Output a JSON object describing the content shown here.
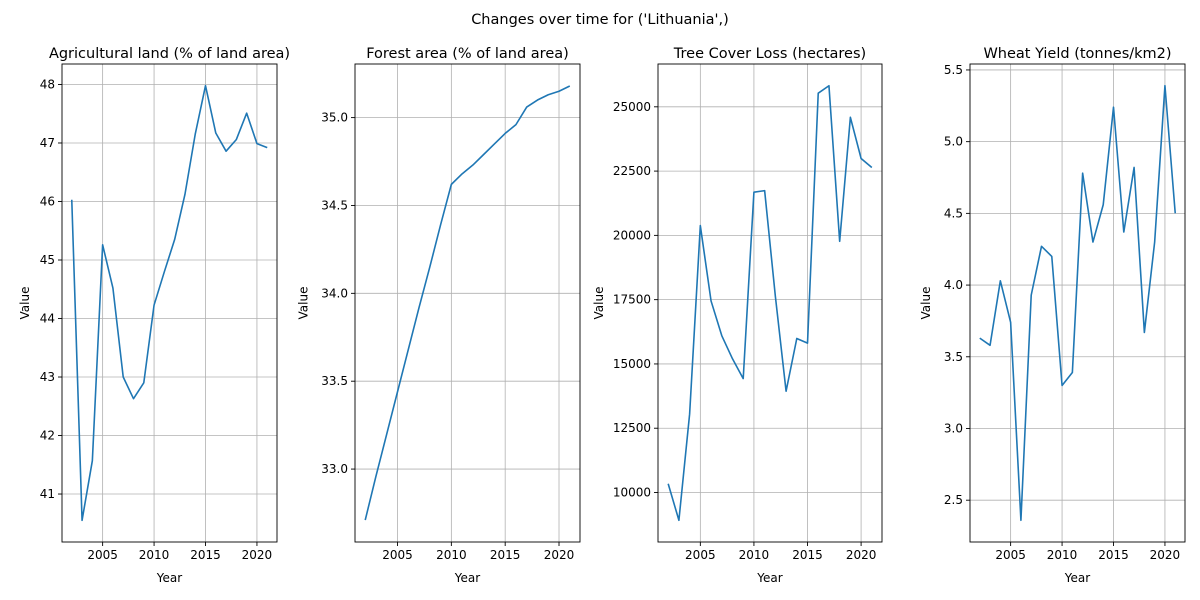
{
  "figure": {
    "suptitle": "Changes over time for ('Lithuania',)",
    "line_color": "#1f77b4",
    "grid_color": "#b0b0b0"
  },
  "chart_data": [
    {
      "type": "line",
      "title": "Agricultural land (% of land area)",
      "xlabel": "Year",
      "ylabel": "Value",
      "x": [
        2002,
        2003,
        2004,
        2005,
        2006,
        2007,
        2008,
        2009,
        2010,
        2011,
        2012,
        2013,
        2014,
        2015,
        2016,
        2017,
        2018,
        2019,
        2020,
        2021
      ],
      "y": [
        46.03,
        40.55,
        41.57,
        45.26,
        44.52,
        43.0,
        42.63,
        42.9,
        44.23,
        44.8,
        45.35,
        46.12,
        47.15,
        47.98,
        47.17,
        46.86,
        47.06,
        47.51,
        46.99,
        46.92
      ],
      "xlim": [
        2001.05,
        2021.95
      ],
      "ylim": [
        40.18,
        48.35
      ],
      "xticks": [
        2005,
        2010,
        2015,
        2020
      ],
      "yticks": [
        41,
        42,
        43,
        44,
        45,
        46,
        47,
        48
      ],
      "grid": true
    },
    {
      "type": "line",
      "title": "Forest area (% of land area)",
      "xlabel": "Year",
      "ylabel": "Value",
      "x": [
        2002,
        2003,
        2004,
        2005,
        2006,
        2007,
        2008,
        2009,
        2010,
        2011,
        2012,
        2013,
        2014,
        2015,
        2016,
        2017,
        2018,
        2019,
        2020,
        2021
      ],
      "y": [
        32.71,
        32.96,
        33.2,
        33.44,
        33.68,
        33.92,
        34.15,
        34.39,
        34.62,
        34.68,
        34.73,
        34.79,
        34.85,
        34.91,
        34.96,
        35.06,
        35.1,
        35.13,
        35.15,
        35.18
      ],
      "xlim": [
        2001.05,
        2021.95
      ],
      "ylim": [
        32.585,
        35.305
      ],
      "xticks": [
        2005,
        2010,
        2015,
        2020
      ],
      "yticks": [
        33.0,
        33.5,
        34.0,
        34.5,
        35.0
      ],
      "grid": true
    },
    {
      "type": "line",
      "title": "Tree Cover Loss (hectares)",
      "xlabel": "Year",
      "ylabel": "Value",
      "x": [
        2002,
        2003,
        2004,
        2005,
        2006,
        2007,
        2008,
        2009,
        2010,
        2011,
        2012,
        2013,
        2014,
        2015,
        2016,
        2017,
        2018,
        2019,
        2020,
        2021
      ],
      "y": [
        10340,
        8920,
        13050,
        20380,
        17450,
        16100,
        15200,
        14430,
        21680,
        21740,
        17630,
        13940,
        15990,
        15810,
        25530,
        25820,
        19770,
        24590,
        22990,
        22640
      ],
      "xlim": [
        2001.05,
        2021.95
      ],
      "ylim": [
        8075,
        26665
      ],
      "xticks": [
        2005,
        2010,
        2015,
        2020
      ],
      "yticks": [
        10000,
        12500,
        15000,
        17500,
        20000,
        22500,
        25000
      ],
      "grid": true
    },
    {
      "type": "line",
      "title": "Wheat Yield (tonnes/km2)",
      "xlabel": "Year",
      "ylabel": "Value",
      "x": [
        2002,
        2003,
        2004,
        2005,
        2006,
        2007,
        2008,
        2009,
        2010,
        2011,
        2012,
        2013,
        2014,
        2015,
        2016,
        2017,
        2018,
        2019,
        2020,
        2021
      ],
      "y": [
        3.63,
        3.58,
        4.03,
        3.74,
        2.36,
        3.93,
        4.27,
        4.2,
        3.3,
        3.39,
        4.78,
        4.3,
        4.56,
        5.24,
        4.37,
        4.82,
        3.67,
        4.3,
        5.39,
        4.5
      ],
      "xlim": [
        2001.05,
        2021.95
      ],
      "ylim": [
        2.2085,
        5.5415
      ],
      "xticks": [
        2005,
        2010,
        2015,
        2020
      ],
      "yticks": [
        2.5,
        3.0,
        3.5,
        4.0,
        4.5,
        5.0,
        5.5
      ],
      "grid": true
    }
  ]
}
